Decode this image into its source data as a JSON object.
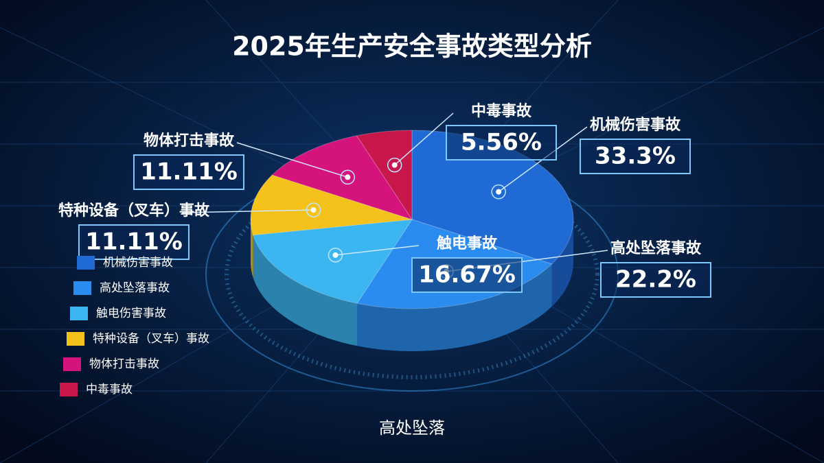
{
  "chart_data": {
    "type": "pie3d",
    "title": "2025年生产安全事故类型分析",
    "categories": [
      "机械伤害事故",
      "高处坠落事故",
      "触电伤害事故",
      "特种设备（叉车）事故",
      "物体打击事故",
      "中毒事故"
    ],
    "slice_labels": [
      "机械伤害事故",
      "高处坠落事故",
      "触电事故",
      "特种设备（叉车）事故",
      "物体打击事故",
      "中毒事故"
    ],
    "values": [
      33.3,
      22.2,
      16.67,
      11.11,
      11.11,
      5.56
    ],
    "value_labels": [
      "33.3%",
      "22.2%",
      "16.67%",
      "11.11%",
      "11.11%",
      "5.56%"
    ],
    "colors": [
      "#1f6ad4",
      "#2b8cef",
      "#3cb6f0",
      "#f4c21a",
      "#d4137c",
      "#c8174a"
    ],
    "caption": "高处坠落"
  }
}
